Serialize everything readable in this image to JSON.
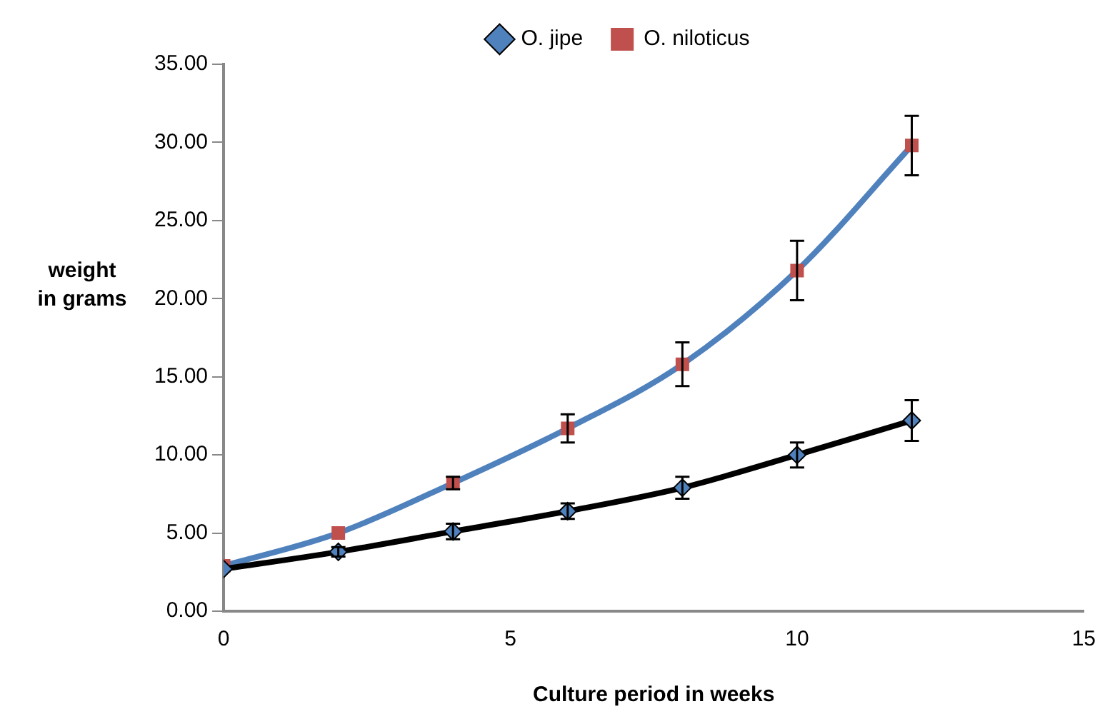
{
  "chart_data": {
    "type": "line",
    "xlabel": "Culture period in weeks",
    "ylabel": "weight\nin grams",
    "x": [
      0,
      2,
      4,
      6,
      8,
      10,
      12
    ],
    "series": [
      {
        "name": "O. jipe",
        "color": "#000000",
        "colors": [
          "#4f81bd",
          "#4f81bd",
          "#4f81bd",
          "#4f81bd",
          "#4f81bd",
          "#4f81bd",
          "#4f81bd"
        ],
        "marker": "diamond",
        "values": [
          2.7,
          3.8,
          5.1,
          6.4,
          7.9,
          10.0,
          12.2
        ],
        "errors": [
          null,
          0.3,
          0.5,
          0.5,
          0.7,
          0.8,
          1.3
        ]
      },
      {
        "name": "O. niloticus",
        "color": "#4f81bd",
        "colors": [
          "#c0504d",
          "#c0504d",
          "#c0504d",
          "#c0504d",
          "#c0504d",
          "#c0504d",
          "#c0504d"
        ],
        "marker": "square",
        "values": [
          2.9,
          5.0,
          8.2,
          11.7,
          15.8,
          21.8,
          29.8
        ],
        "errors": [
          null,
          null,
          0.4,
          0.9,
          1.4,
          1.9,
          1.9
        ]
      }
    ],
    "xlim": [
      0,
      15
    ],
    "xticks": [
      0,
      5,
      10,
      15
    ],
    "ylim": [
      0,
      35
    ],
    "yticks": [
      {
        "value": 0,
        "label": "0.00"
      },
      {
        "value": 5,
        "label": "5.00"
      },
      {
        "value": 10,
        "label": "10.00"
      },
      {
        "value": 15,
        "label": "15.00"
      },
      {
        "value": 20,
        "label": "20.00"
      },
      {
        "value": 25,
        "label": "25.00"
      },
      {
        "value": 30,
        "label": "30.00"
      },
      {
        "value": 35,
        "label": "35.00"
      }
    ],
    "grid": false,
    "legend": "top"
  }
}
